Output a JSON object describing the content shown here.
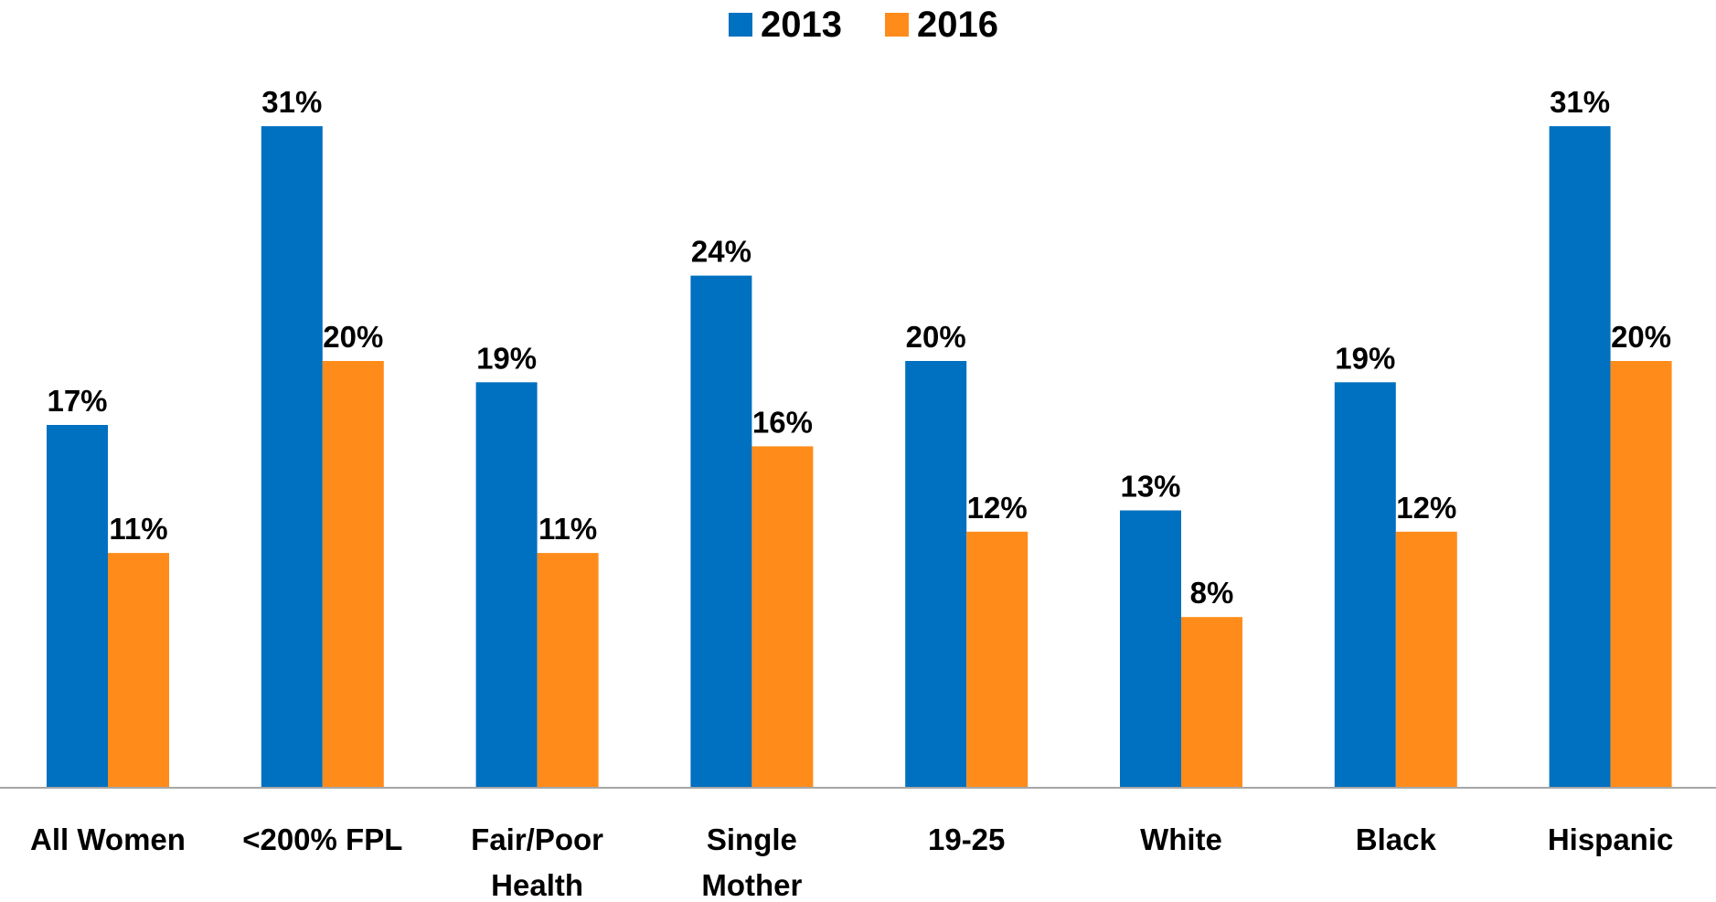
{
  "chart_data": {
    "type": "bar",
    "title": "",
    "xlabel": "",
    "ylabel": "",
    "ylim": [
      0,
      31
    ],
    "grid": false,
    "legend_position": "top-center",
    "categories": [
      [
        "All Women"
      ],
      [
        "<200% FPL"
      ],
      [
        "Fair/Poor",
        "Health"
      ],
      [
        "Single",
        "Mother"
      ],
      [
        "19-25"
      ],
      [
        "White"
      ],
      [
        "Black"
      ],
      [
        "Hispanic"
      ]
    ],
    "series": [
      {
        "name": "2013",
        "color": "#0070C0",
        "values": [
          17,
          31,
          19,
          24,
          20,
          13,
          19,
          31
        ],
        "labels": [
          "17%",
          "31%",
          "19%",
          "24%",
          "20%",
          "13%",
          "19%",
          "31%"
        ]
      },
      {
        "name": "2016",
        "color": "#FF8C1A",
        "values": [
          11,
          20,
          11,
          16,
          12,
          8,
          12,
          20
        ],
        "labels": [
          "11%",
          "20%",
          "11%",
          "16%",
          "12%",
          "8%",
          "12%",
          "20%"
        ]
      }
    ]
  }
}
